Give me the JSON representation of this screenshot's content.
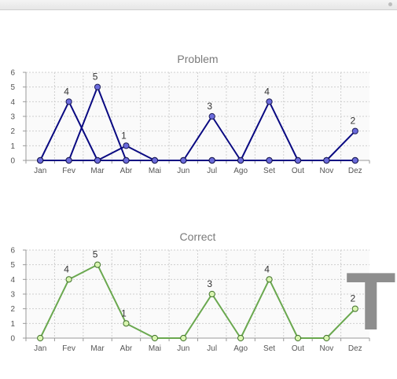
{
  "chart_data": [
    {
      "type": "line",
      "title": "Problem",
      "categories": [
        "Jan",
        "Fev",
        "Mar",
        "Abr",
        "Mai",
        "Jun",
        "Jul",
        "Ago",
        "Set",
        "Out",
        "Nov",
        "Dez"
      ],
      "ylim": [
        0,
        6
      ],
      "yticks": [
        0,
        1,
        2,
        3,
        4,
        5,
        6
      ],
      "grid": true,
      "series": [
        {
          "values": [
            0,
            4,
            0,
            0,
            0,
            0,
            0,
            0,
            0,
            0,
            0,
            0
          ]
        },
        {
          "values": [
            0,
            0,
            5,
            0,
            0,
            0,
            0,
            0,
            0,
            0,
            0,
            0
          ]
        },
        {
          "values": [
            0,
            0,
            0,
            1,
            0,
            0,
            0,
            0,
            0,
            0,
            0,
            0
          ]
        },
        {
          "values": [
            0,
            0,
            0,
            0,
            0,
            0,
            3,
            0,
            0,
            0,
            0,
            0
          ]
        },
        {
          "values": [
            0,
            0,
            0,
            0,
            0,
            0,
            0,
            0,
            4,
            0,
            0,
            0
          ]
        },
        {
          "values": [
            0,
            0,
            0,
            0,
            0,
            0,
            0,
            0,
            0,
            0,
            0,
            2
          ]
        }
      ],
      "labels": {
        "Fev": "4",
        "Mar": "5",
        "Abr": "1",
        "Jul": "3",
        "Set": "4",
        "Dez": "2"
      },
      "colors": {
        "line": "#0a0a82",
        "marker": "#6b6bdc"
      }
    },
    {
      "type": "line",
      "title": "Correct",
      "categories": [
        "Jan",
        "Fev",
        "Mar",
        "Abr",
        "Mai",
        "Jun",
        "Jul",
        "Ago",
        "Set",
        "Out",
        "Nov",
        "Dez"
      ],
      "ylim": [
        0,
        6
      ],
      "yticks": [
        0,
        1,
        2,
        3,
        4,
        5,
        6
      ],
      "grid": true,
      "series": [
        {
          "values": [
            0,
            4,
            5,
            1,
            0,
            0,
            3,
            0,
            4,
            0,
            0,
            2
          ]
        }
      ],
      "labels": {
        "Fev": "4",
        "Mar": "5",
        "Abr": "1",
        "Jul": "3",
        "Set": "4",
        "Dez": "2"
      },
      "colors": {
        "line": "#6aa84f",
        "marker": "#d8f5b0"
      }
    }
  ],
  "overlay_letter": "T"
}
